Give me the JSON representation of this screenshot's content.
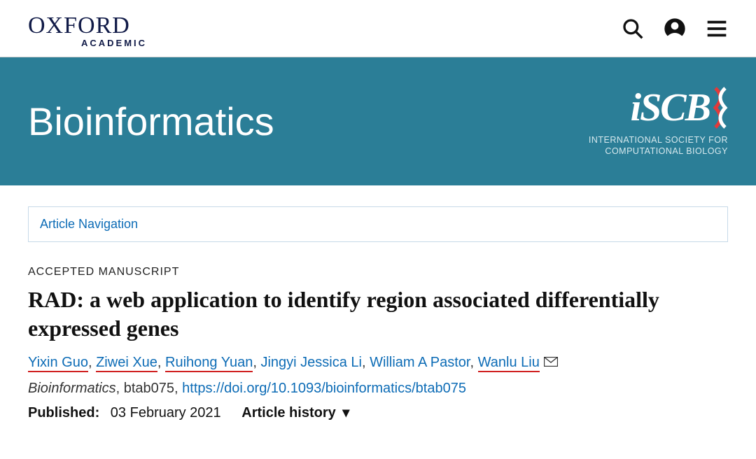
{
  "brand": {
    "name": "OXFORD",
    "sub": "ACADEMIC"
  },
  "banner": {
    "journal": "Bioinformatics",
    "society_logo_text": "iSCB",
    "society_line1": "INTERNATIONAL SOCIETY FOR",
    "society_line2": "COMPUTATIONAL BIOLOGY",
    "bg_color": "#2b7e97"
  },
  "article_nav": {
    "label": "Article Navigation"
  },
  "article": {
    "status": "ACCEPTED MANUSCRIPT",
    "title": "RAD: a web application to identify region associated differentially expressed genes",
    "authors": [
      {
        "name": "Yixin Guo",
        "underlined": true
      },
      {
        "name": "Ziwei Xue",
        "underlined": true
      },
      {
        "name": "Ruihong Yuan",
        "underlined": true
      },
      {
        "name": "Jingyi Jessica Li",
        "underlined": false
      },
      {
        "name": "William A Pastor",
        "underlined": false
      },
      {
        "name": "Wanlu Liu",
        "underlined": true,
        "corresponding": true
      }
    ],
    "journal_meta": "Bioinformatics",
    "article_id": "btab075",
    "doi_url": "https://doi.org/10.1093/bioinformatics/btab075",
    "published_label": "Published:",
    "published_date": "03 February 2021",
    "history_label": "Article history"
  },
  "colors": {
    "link": "#0d6cb6",
    "underline_red": "#d02020",
    "text": "#111111"
  }
}
